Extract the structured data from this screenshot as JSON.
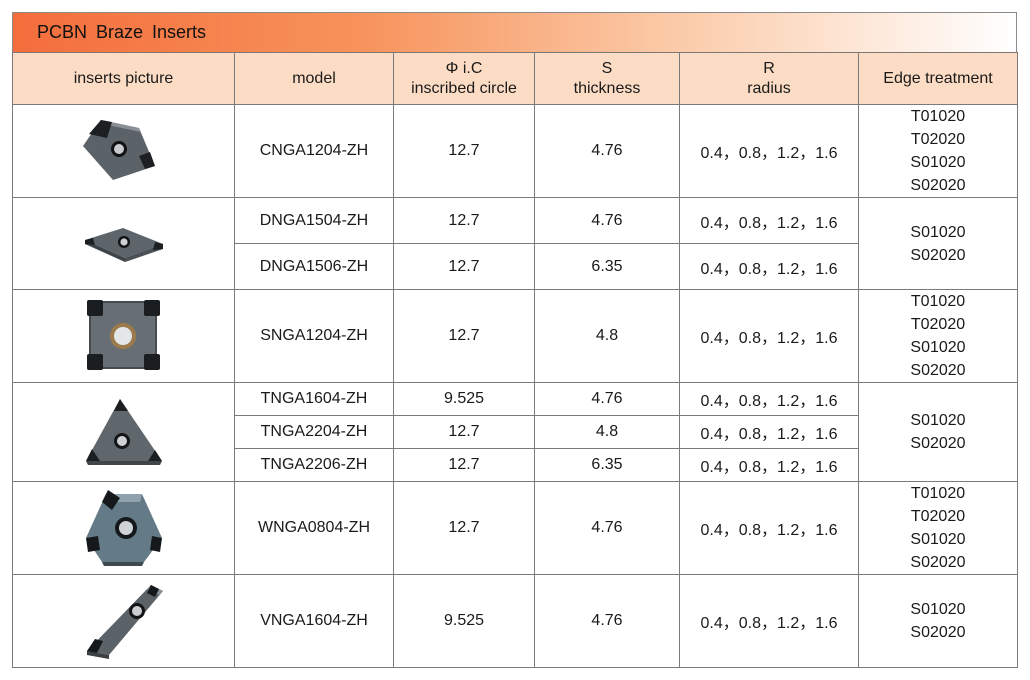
{
  "title": "PCBN  Braze  Inserts",
  "headers": {
    "picture": "inserts picture",
    "model": "model",
    "ic_line1": "Φ i.C",
    "ic_line2": "inscribed circle",
    "s_line1": "S",
    "s_line2": "thickness",
    "r_line1": "R",
    "r_line2": "radius",
    "edge": "Edge treatment"
  },
  "groups": [
    {
      "shape": "cnga-insert",
      "edge": [
        "T01020",
        "T02020",
        "S01020",
        "S02020"
      ],
      "rows": [
        {
          "model": "CNGA1204-ZH",
          "ic": "12.7",
          "s": "4.76",
          "r": "0.4，0.8，1.2，1.6"
        }
      ]
    },
    {
      "shape": "dnga-insert",
      "edge": [
        "S01020",
        "S02020"
      ],
      "rows": [
        {
          "model": "DNGA1504-ZH",
          "ic": "12.7",
          "s": "4.76",
          "r": "0.4，0.8，1.2，1.6"
        },
        {
          "model": "DNGA1506-ZH",
          "ic": "12.7",
          "s": "6.35",
          "r": "0.4，0.8，1.2，1.6"
        }
      ]
    },
    {
      "shape": "snga-insert",
      "edge": [
        "T01020",
        "T02020",
        "S01020",
        "S02020"
      ],
      "rows": [
        {
          "model": "SNGA1204-ZH",
          "ic": "12.7",
          "s": "4.8",
          "r": "0.4，0.8，1.2，1.6"
        }
      ]
    },
    {
      "shape": "tnga-insert",
      "edge": [
        "S01020",
        "S02020"
      ],
      "rows": [
        {
          "model": "TNGA1604-ZH",
          "ic": "9.525",
          "s": "4.76",
          "r": "0.4，0.8，1.2，1.6"
        },
        {
          "model": "TNGA2204-ZH",
          "ic": "12.7",
          "s": "4.8",
          "r": "0.4，0.8，1.2，1.6"
        },
        {
          "model": "TNGA2206-ZH",
          "ic": "12.7",
          "s": "6.35",
          "r": "0.4，0.8，1.2，1.6"
        }
      ]
    },
    {
      "shape": "wnga-insert",
      "edge": [
        "T01020",
        "T02020",
        "S01020",
        "S02020"
      ],
      "rows": [
        {
          "model": "WNGA0804-ZH",
          "ic": "12.7",
          "s": "4.76",
          "r": "0.4，0.8，1.2，1.6"
        }
      ]
    },
    {
      "shape": "vnga-insert",
      "edge": [
        "S01020",
        "S02020"
      ],
      "rows": [
        {
          "model": "VNGA1604-ZH",
          "ic": "9.525",
          "s": "4.76",
          "r": "0.4，0.8，1.2，1.6"
        }
      ]
    }
  ]
}
